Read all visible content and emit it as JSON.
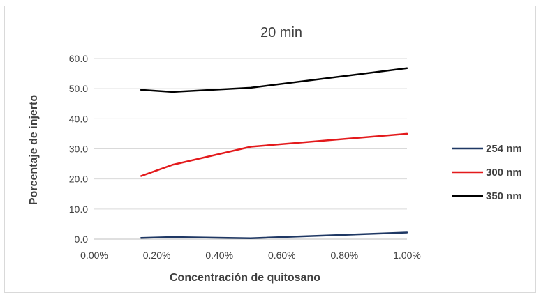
{
  "chart_data": {
    "type": "line",
    "title": "20 min",
    "xlabel": "Concentración de quitosano",
    "ylabel": "Porcentaje de injerto",
    "xlim": [
      0,
      0.01
    ],
    "ylim": [
      0,
      60
    ],
    "x_ticks": [
      "0.00%",
      "0.20%",
      "0.40%",
      "0.60%",
      "0.80%",
      "1.00%"
    ],
    "y_ticks": [
      "0.0",
      "10.0",
      "20.0",
      "30.0",
      "40.0",
      "50.0",
      "60.0"
    ],
    "grid": "horizontal",
    "legend_position": "right",
    "series": [
      {
        "name": "254 nm",
        "color": "#1f3864",
        "x": [
          0.0015,
          0.0025,
          0.005,
          0.01
        ],
        "values": [
          0.4,
          0.7,
          0.3,
          2.2
        ]
      },
      {
        "name": "300 nm",
        "color": "#e31a1c",
        "x": [
          0.0015,
          0.0025,
          0.005,
          0.01
        ],
        "values": [
          21.0,
          24.7,
          30.7,
          35.0
        ]
      },
      {
        "name": "350 nm",
        "color": "#000000",
        "x": [
          0.0015,
          0.0025,
          0.005,
          0.01
        ],
        "values": [
          49.6,
          48.9,
          50.3,
          56.8
        ]
      }
    ]
  }
}
